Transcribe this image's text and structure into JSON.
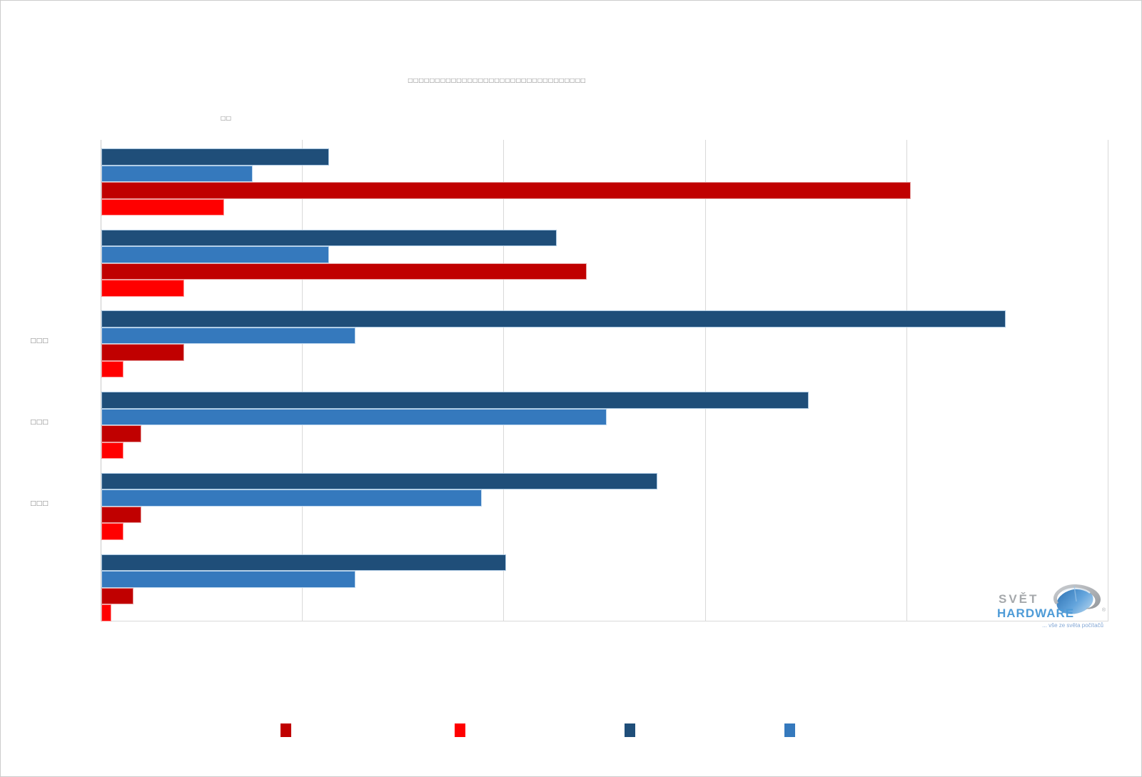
{
  "page": {
    "background": "#ffffff",
    "border_color": "#cccccc"
  },
  "title": {
    "text": "□□□□□□□□□□□□□□□□□□□□□□□□□□□□□□□□□",
    "color": "#848484"
  },
  "axis_note": "□□",
  "chart_data": {
    "type": "bar",
    "orientation": "horizontal",
    "title_rendered_as_placeholder_boxes": true,
    "categories": [
      "",
      "",
      "□□□",
      "□□□",
      "□□□",
      ""
    ],
    "series": [
      {
        "name": "series-dark-blue",
        "color": "#1F4E79",
        "border": "#a8c6e0",
        "values": [
          1.13,
          2.26,
          4.49,
          3.51,
          2.76,
          2.01
        ]
      },
      {
        "name": "series-medium-blue",
        "color": "#3579BD",
        "border": "#bdd7ee",
        "values": [
          0.75,
          1.13,
          1.26,
          2.51,
          1.89,
          1.26
        ]
      },
      {
        "name": "series-dark-red",
        "color": "#C00000",
        "border": "#e5a0a0",
        "values": [
          4.02,
          2.41,
          0.41,
          0.2,
          0.2,
          0.16
        ]
      },
      {
        "name": "series-red",
        "color": "#FF0000",
        "border": "#ff9999",
        "values": [
          0.61,
          0.41,
          0.11,
          0.11,
          0.11,
          0.05
        ]
      }
    ],
    "xlim": [
      0,
      5
    ],
    "gridlines_x": [
      1,
      2,
      3,
      4,
      5
    ],
    "grid": true,
    "tick_labels_visible": false,
    "legend": {
      "position": "bottom",
      "labels_visible": false,
      "entries": [
        {
          "name": "legend-dark-red",
          "color": "#C00000"
        },
        {
          "name": "legend-red",
          "color": "#FF0000"
        },
        {
          "name": "legend-dark-blue",
          "color": "#1F4E79"
        },
        {
          "name": "legend-medium-blue",
          "color": "#3579BD"
        }
      ]
    }
  },
  "logo": {
    "line1": "SVĚT",
    "line2": "HARDWARE",
    "registered_mark": "®",
    "tagline": "... vše ze světa počítačů",
    "brand_blue": "#4e9bd7",
    "brand_grey": "#a5a8ab"
  }
}
